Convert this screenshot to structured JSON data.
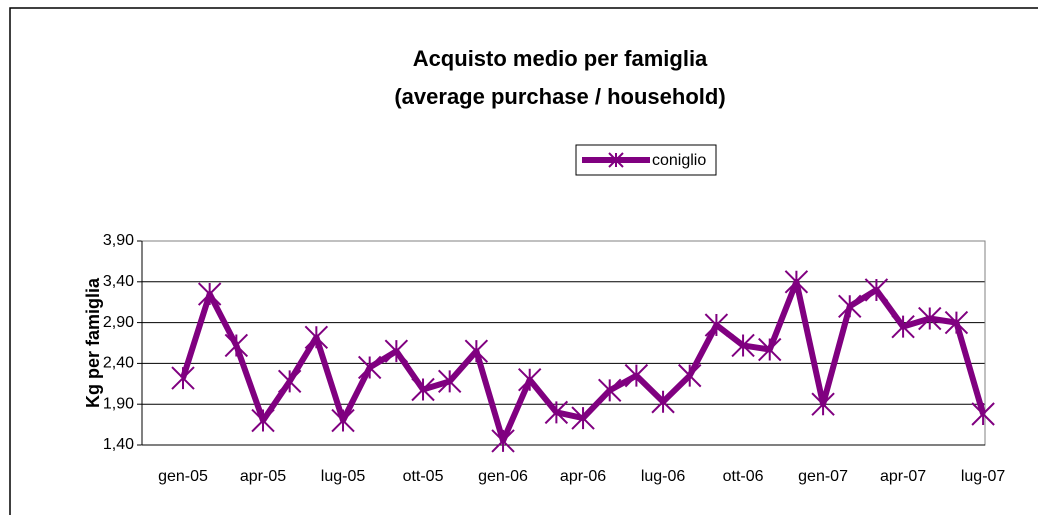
{
  "chart_data": {
    "type": "line",
    "title": [
      "Acquisto medio per famiglia",
      "(average purchase / household)"
    ],
    "y_label": "Kg per famiglia",
    "categories": [
      "gen-05",
      null,
      null,
      "apr-05",
      null,
      null,
      "lug-05",
      null,
      null,
      "ott-05",
      null,
      null,
      "gen-06",
      null,
      null,
      "apr-06",
      null,
      null,
      "lug-06",
      null,
      null,
      "ott-06",
      null,
      null,
      "gen-07",
      null,
      null,
      "apr-07",
      null,
      null,
      "lug-07"
    ],
    "series": [
      {
        "name": "coniglio",
        "color": "#800080",
        "values": [
          2.22,
          3.25,
          2.62,
          1.7,
          2.18,
          2.72,
          1.7,
          2.35,
          2.55,
          2.08,
          2.18,
          2.55,
          1.45,
          2.2,
          1.8,
          1.73,
          2.07,
          2.25,
          1.93,
          2.25,
          2.87,
          2.62,
          2.57,
          3.4,
          1.9,
          3.1,
          3.3,
          2.85,
          2.95,
          2.9,
          1.78
        ]
      }
    ],
    "ylim": [
      1.4,
      3.9
    ],
    "yticks": [
      {
        "value": 1.4,
        "label": "1,40"
      },
      {
        "value": 1.9,
        "label": "1,90"
      },
      {
        "value": 2.4,
        "label": "2,40"
      },
      {
        "value": 2.9,
        "label": "2,90"
      },
      {
        "value": 3.4,
        "label": "3,40"
      },
      {
        "value": 3.9,
        "label": "3,90"
      }
    ],
    "grid": true
  }
}
